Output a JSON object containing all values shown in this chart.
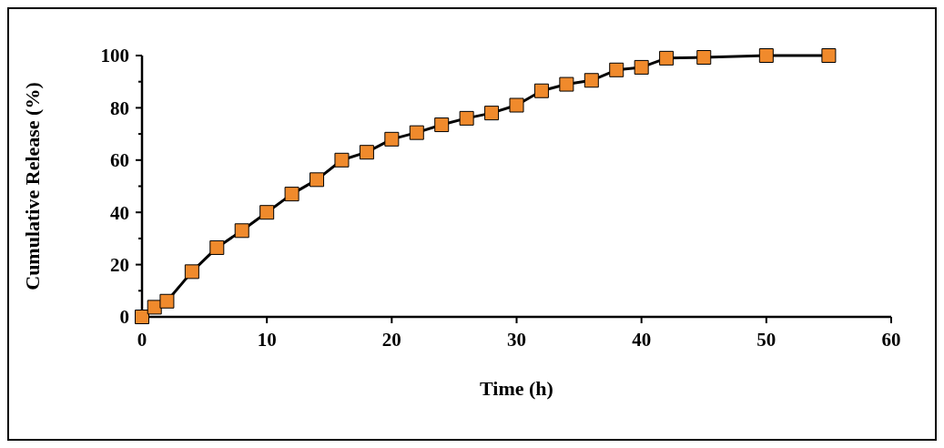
{
  "chart_data": {
    "type": "line",
    "xlabel": "Time (h)",
    "ylabel": "Cumulative Release (%)",
    "xlim": [
      0,
      60
    ],
    "xticks": [
      0,
      10,
      20,
      30,
      40,
      50,
      60
    ],
    "ylim": [
      0,
      100
    ],
    "yticks": [
      0,
      20,
      40,
      60,
      80,
      100
    ],
    "grid": false,
    "marker": "square",
    "line_style": "solid",
    "series": [
      {
        "color": "#f08a2c",
        "x": [
          0,
          1,
          2,
          4,
          6,
          8,
          10,
          12,
          14,
          16,
          18,
          20,
          22,
          24,
          26,
          28,
          30,
          32,
          34,
          36,
          38,
          40,
          42,
          45,
          50,
          55
        ],
        "values": [
          0,
          3.7,
          6,
          17.3,
          26.5,
          33,
          40,
          47,
          52.5,
          60,
          63,
          68,
          70.5,
          73.5,
          76,
          78,
          81,
          86.5,
          89,
          90.5,
          94.5,
          95.5,
          99,
          99.3,
          100,
          100
        ]
      }
    ]
  }
}
